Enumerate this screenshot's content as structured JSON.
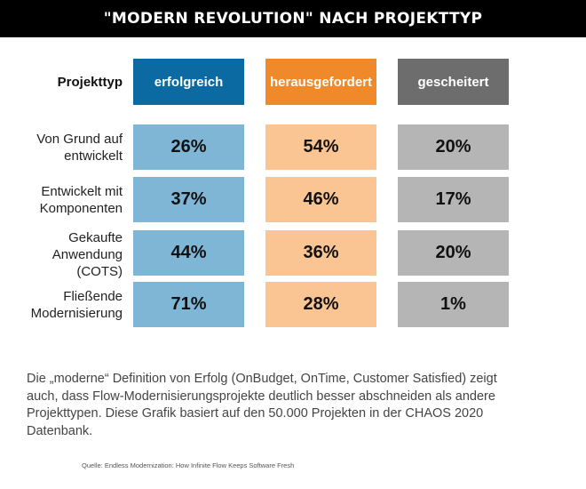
{
  "header": {
    "title": "\"MODERN REVOLUTION\" NACH PROJEKTTYP"
  },
  "chart_data": {
    "type": "table",
    "title": "\"MODERN REVOLUTION\" NACH PROJEKTTYP",
    "row_header": "Projekttyp",
    "columns": [
      {
        "label": "erfolgreich",
        "header_color": "#0a6aa1",
        "cell_color": "#7fb6d6"
      },
      {
        "label": "herausgefordert",
        "header_color": "#f0892a",
        "cell_color": "#fac493"
      },
      {
        "label": "gescheitert",
        "header_color": "#6d6d6d",
        "cell_color": "#b5b5b5"
      }
    ],
    "rows": [
      {
        "label": "Von Grund auf\nentwickelt",
        "values": [
          "26%",
          "54%",
          "20%"
        ]
      },
      {
        "label": "Entwickelt mit\nKomponenten",
        "values": [
          "37%",
          "46%",
          "17%"
        ]
      },
      {
        "label": "Gekaufte\nAnwendung\n(COTS)",
        "values": [
          "44%",
          "36%",
          "20%"
        ]
      },
      {
        "label": "Fließende\nModernisierung",
        "values": [
          "71%",
          "28%",
          "1%"
        ]
      }
    ]
  },
  "footnote": "Die „moderne“ Definition von Erfolg (OnBudget, OnTime, Customer Satisfied) zeigt auch, dass Flow-Modernisierungsprojekte deutlich besser abschneiden als andere Projekttypen. Diese Grafik basiert auf den 50.000 Projekten in der CHAOS 2020 Datenbank.",
  "source": "Quelle: Endless Modernization: How Infinite Flow Keeps Software Fresh"
}
